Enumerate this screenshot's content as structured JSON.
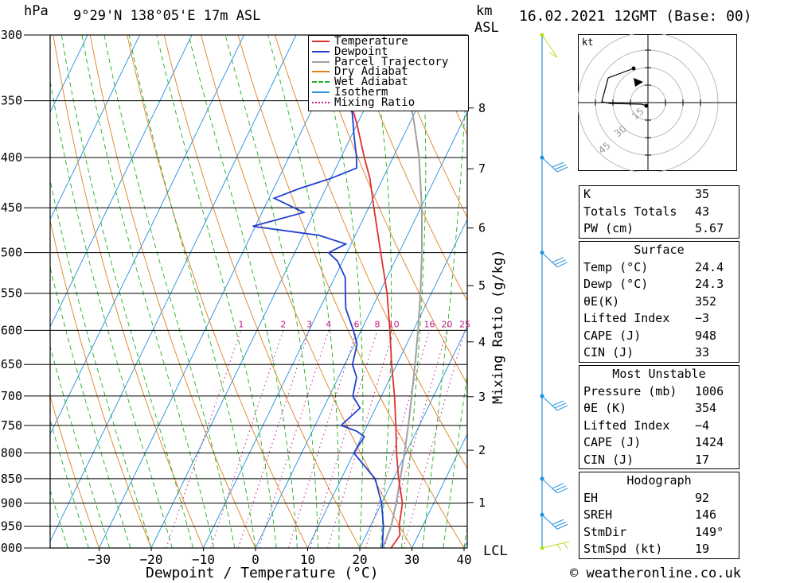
{
  "header": {
    "units_left": "hPa",
    "location": "9°29'N 138°05'E 17m ASL",
    "units_km": "km",
    "units_asl": "ASL",
    "datetime": "16.02.2021 12GMT (Base: 00)"
  },
  "legend": {
    "items": [
      {
        "label": "Temperature",
        "color": "#e03030"
      },
      {
        "label": "Dewpoint",
        "color": "#2040d0"
      },
      {
        "label": "Parcel Trajectory",
        "color": "#a0a0a0"
      },
      {
        "label": "Dry Adiabat",
        "color": "#e08020"
      },
      {
        "label": "Wet Adiabat",
        "color": "#20b020"
      },
      {
        "label": "Isotherm",
        "color": "#2090e0"
      },
      {
        "label": "Mixing Ratio",
        "color": "#c02080"
      }
    ]
  },
  "chart_data": {
    "type": "line",
    "title": "",
    "xlabel": "Dewpoint / Temperature (°C)",
    "ylabel": "hPa",
    "y2label": "Mixing Ratio (g/kg)",
    "x_ticks": [
      -30,
      -20,
      -10,
      0,
      10,
      20,
      30,
      40
    ],
    "pressure_levels": [
      300,
      350,
      400,
      450,
      500,
      550,
      600,
      650,
      700,
      750,
      800,
      850,
      900,
      950,
      1000
    ],
    "km_ticks": [
      1,
      2,
      3,
      4,
      5,
      6,
      7,
      8
    ],
    "lcl_label": "LCL",
    "mixing_ratio_labels": [
      "1",
      "2",
      "3",
      "4",
      "6",
      "8",
      "10",
      "16",
      "20",
      "25"
    ],
    "series": [
      {
        "name": "Temperature",
        "color": "#e03030",
        "points": [
          [
            1000,
            26.0
          ],
          [
            970,
            26.5
          ],
          [
            950,
            25.5
          ],
          [
            900,
            24.0
          ],
          [
            850,
            21.0
          ],
          [
            800,
            18.2
          ],
          [
            750,
            15.5
          ],
          [
            700,
            12.5
          ],
          [
            650,
            9.0
          ],
          [
            600,
            5.5
          ],
          [
            550,
            1.5
          ],
          [
            500,
            -3.5
          ],
          [
            450,
            -9.0
          ],
          [
            420,
            -12.5
          ],
          [
            400,
            -15.5
          ],
          [
            370,
            -20.0
          ],
          [
            350,
            -23.5
          ],
          [
            300,
            -31.5
          ]
        ]
      },
      {
        "name": "Dewpoint",
        "color": "#2040d0",
        "points": [
          [
            1000,
            24.3
          ],
          [
            950,
            22.5
          ],
          [
            900,
            20.0
          ],
          [
            850,
            16.5
          ],
          [
            800,
            10.0
          ],
          [
            770,
            10.5
          ],
          [
            760,
            8.5
          ],
          [
            750,
            5.0
          ],
          [
            720,
            7.0
          ],
          [
            700,
            4.5
          ],
          [
            670,
            3.5
          ],
          [
            650,
            1.5
          ],
          [
            620,
            0.5
          ],
          [
            600,
            -1.5
          ],
          [
            570,
            -5.0
          ],
          [
            550,
            -6.5
          ],
          [
            530,
            -8.0
          ],
          [
            510,
            -11.0
          ],
          [
            500,
            -13.5
          ],
          [
            490,
            -11.0
          ],
          [
            480,
            -17.0
          ],
          [
            470,
            -30.5
          ],
          [
            455,
            -22.0
          ],
          [
            440,
            -29.0
          ],
          [
            430,
            -25.0
          ],
          [
            420,
            -20.0
          ],
          [
            410,
            -16.0
          ],
          [
            400,
            -17.0
          ],
          [
            380,
            -19.5
          ],
          [
            360,
            -22.0
          ],
          [
            340,
            -27.0
          ],
          [
            300,
            -37.0
          ]
        ]
      },
      {
        "name": "Parcel Trajectory",
        "color": "#a0a0a0",
        "points": [
          [
            1000,
            24.4
          ],
          [
            950,
            24.0
          ],
          [
            900,
            22.8
          ],
          [
            850,
            21.3
          ],
          [
            800,
            19.7
          ],
          [
            750,
            17.9
          ],
          [
            700,
            15.8
          ],
          [
            650,
            13.5
          ],
          [
            600,
            10.9
          ],
          [
            550,
            7.9
          ],
          [
            500,
            4.4
          ],
          [
            450,
            0.2
          ],
          [
            400,
            -5.0
          ],
          [
            370,
            -9.0
          ],
          [
            350,
            -12.0
          ]
        ]
      }
    ]
  },
  "hodograph": {
    "unit_label": "kt",
    "ring_labels": [
      "15",
      "30",
      "45"
    ]
  },
  "wind_barbs": {
    "color": "#2090e0"
  },
  "indices": {
    "top": [
      {
        "key": "K",
        "value": "35"
      },
      {
        "key": "Totals Totals",
        "value": "43"
      },
      {
        "key": "PW (cm)",
        "value": "5.67"
      }
    ],
    "surface": {
      "title": "Surface",
      "rows": [
        {
          "key": "Temp (°C)",
          "value": "24.4"
        },
        {
          "key": "Dewp (°C)",
          "value": "24.3"
        },
        {
          "key": "θE(K)",
          "value": "352"
        },
        {
          "key": "Lifted Index",
          "value": "−3"
        },
        {
          "key": "CAPE (J)",
          "value": "948"
        },
        {
          "key": "CIN (J)",
          "value": "33"
        }
      ]
    },
    "most_unstable": {
      "title": "Most Unstable",
      "rows": [
        {
          "key": "Pressure (mb)",
          "value": "1006"
        },
        {
          "key": "θE (K)",
          "value": "354"
        },
        {
          "key": "Lifted Index",
          "value": "−4"
        },
        {
          "key": "CAPE (J)",
          "value": "1424"
        },
        {
          "key": "CIN (J)",
          "value": "17"
        }
      ]
    },
    "hodograph_box": {
      "title": "Hodograph",
      "rows": [
        {
          "key": "EH",
          "value": "92"
        },
        {
          "key": "SREH",
          "value": "146"
        },
        {
          "key": "StmDir",
          "value": "149°"
        },
        {
          "key": "StmSpd (kt)",
          "value": "19"
        }
      ]
    }
  },
  "credit": "© weatheronline.co.uk"
}
